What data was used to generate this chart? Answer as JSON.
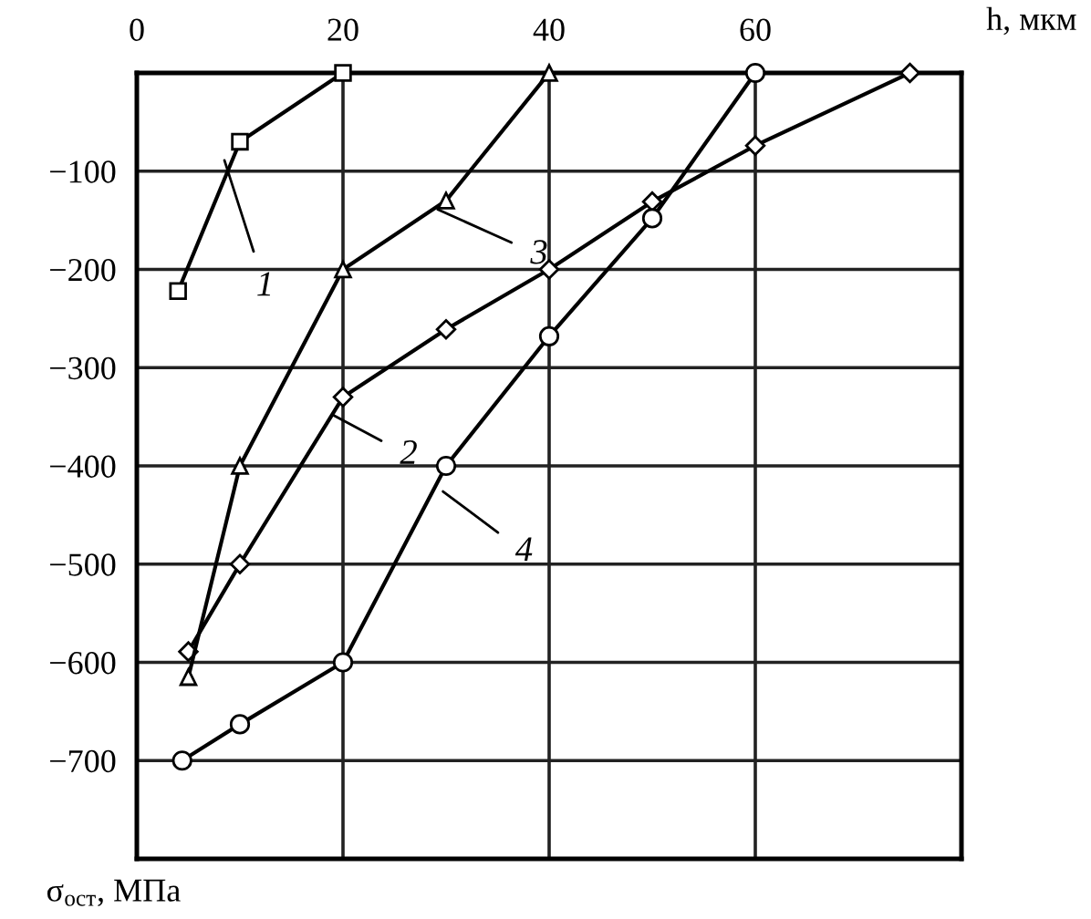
{
  "chart_data": {
    "type": "line",
    "xlabel": "h, мкм",
    "ylabel": "σ$_{ост}$, МПа",
    "xlim": [
      0,
      80
    ],
    "xticks": [
      0,
      20,
      40,
      60
    ],
    "ylim": [
      -800,
      0
    ],
    "yticks": [
      {
        "value": -800,
        "label": null
      },
      -700,
      -600,
      -500,
      -400,
      -300,
      -200,
      -100
    ],
    "grid": true,
    "legend": false,
    "line_style": "solid",
    "series": [
      {
        "color": "#000000",
        "marker": "square",
        "x": [
          4,
          10,
          20
        ],
        "values": [
          -222,
          -70,
          0
        ]
      },
      {
        "color": "#000000",
        "marker": "diamond",
        "x": [
          5,
          10,
          20,
          30,
          40,
          50,
          60,
          75
        ],
        "values": [
          -589,
          -500,
          -330,
          -261,
          -200,
          -131,
          -74,
          0
        ]
      },
      {
        "color": "#000000",
        "marker": "triangle",
        "x": [
          5,
          10,
          20,
          30,
          40
        ],
        "values": [
          -615,
          -400,
          -200,
          -130,
          0
        ]
      },
      {
        "color": "#000000",
        "marker": "circle",
        "x": [
          4.4,
          10,
          20,
          30,
          40,
          50,
          60
        ],
        "values": [
          -700,
          -663,
          -600,
          -400,
          -268,
          -148,
          0
        ]
      }
    ],
    "annotations": [
      {
        "text": "1",
        "x": 8.5,
        "y": -89
      },
      {
        "text": "2",
        "x": 19,
        "y": -348
      },
      {
        "text": "3",
        "x": 29.2,
        "y": -139
      },
      {
        "text": "4",
        "x": 29.7,
        "y": -426
      }
    ]
  }
}
